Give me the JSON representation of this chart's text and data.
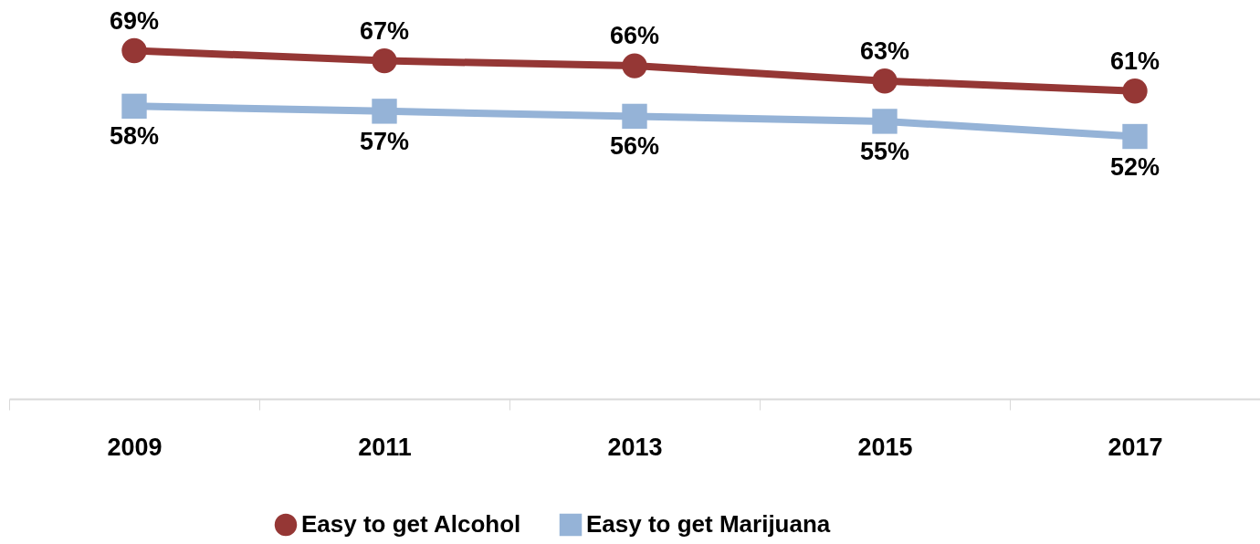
{
  "chart_data": {
    "type": "line",
    "categories": [
      "2009",
      "2011",
      "2013",
      "2015",
      "2017"
    ],
    "series": [
      {
        "name": "Easy to get Alcohol",
        "color": "#953735",
        "marker": "circle",
        "line_style": "solid",
        "values": [
          69,
          67,
          66,
          63,
          61
        ],
        "value_labels": [
          "69%",
          "67%",
          "66%",
          "63%",
          "61%"
        ]
      },
      {
        "name": "Easy to get Marijuana",
        "color": "#95b3d7",
        "marker": "square",
        "line_style": "solid",
        "values": [
          58,
          57,
          56,
          55,
          52
        ],
        "value_labels": [
          "58%",
          "57%",
          "56%",
          "55%",
          "52%"
        ]
      }
    ],
    "tick_labels": "x",
    "grid": false,
    "legend": "bottom"
  }
}
